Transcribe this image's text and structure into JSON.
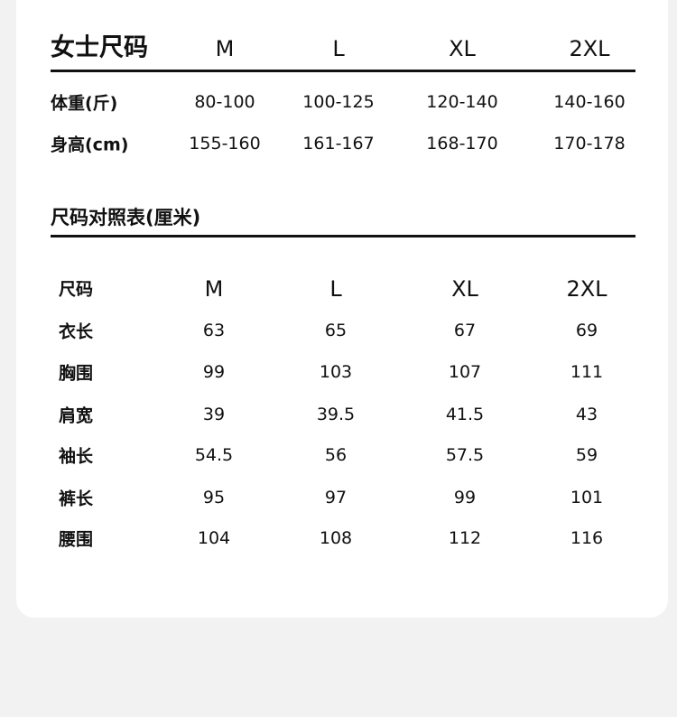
{
  "women_size": {
    "title": "女士尺码",
    "sizes": [
      "M",
      "L",
      "XL",
      "2XL"
    ],
    "rows": [
      {
        "label": "体重(斤)",
        "values": [
          "80-100",
          "100-125",
          "120-140",
          "140-160"
        ]
      },
      {
        "label": "身高(cm)",
        "values": [
          "155-160",
          "161-167",
          "168-170",
          "170-178"
        ]
      }
    ]
  },
  "size_chart": {
    "title": "尺码对照表(厘米)",
    "header_label": "尺码",
    "sizes": [
      "M",
      "L",
      "XL",
      "2XL"
    ],
    "rows": [
      {
        "label": "衣长",
        "values": [
          "63",
          "65",
          "67",
          "69"
        ]
      },
      {
        "label": "胸围",
        "values": [
          "99",
          "103",
          "107",
          "111"
        ]
      },
      {
        "label": "肩宽",
        "values": [
          "39",
          "39.5",
          "41.5",
          "43"
        ]
      },
      {
        "label": "袖长",
        "values": [
          "54.5",
          "56",
          "57.5",
          "59"
        ]
      },
      {
        "label": "裤长",
        "values": [
          "95",
          "97",
          "99",
          "101"
        ]
      },
      {
        "label": "腰围",
        "values": [
          "104",
          "108",
          "112",
          "116"
        ]
      }
    ]
  }
}
